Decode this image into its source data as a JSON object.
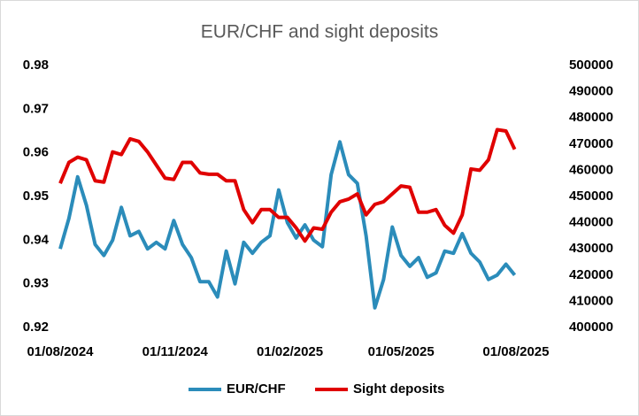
{
  "chart_data": {
    "type": "line",
    "title": "EUR/CHF and sight deposits",
    "x": [
      "01/08/2024",
      "08/08/2024",
      "15/08/2024",
      "22/08/2024",
      "29/08/2024",
      "05/09/2024",
      "12/09/2024",
      "19/09/2024",
      "26/09/2024",
      "03/10/2024",
      "10/10/2024",
      "17/10/2024",
      "24/10/2024",
      "31/10/2024",
      "07/11/2024",
      "14/11/2024",
      "21/11/2024",
      "28/11/2024",
      "05/12/2024",
      "12/12/2024",
      "19/12/2024",
      "26/12/2024",
      "02/01/2025",
      "09/01/2025",
      "16/01/2025",
      "23/01/2025",
      "30/01/2025",
      "06/02/2025",
      "13/02/2025",
      "20/02/2025",
      "27/02/2025",
      "06/03/2025",
      "13/03/2025",
      "20/03/2025",
      "27/03/2025",
      "03/04/2025",
      "10/04/2025",
      "17/04/2025",
      "24/04/2025",
      "01/05/2025",
      "08/05/2025",
      "15/05/2025",
      "22/05/2025",
      "29/05/2025",
      "05/06/2025",
      "12/06/2025",
      "19/06/2025",
      "26/06/2025",
      "03/07/2025",
      "10/07/2025",
      "17/07/2025",
      "24/07/2025",
      "31/07/2025"
    ],
    "series": [
      {
        "name": "EUR/CHF",
        "color": "#2b8cba",
        "axis": "y",
        "values": [
          0.938,
          0.945,
          0.9545,
          0.948,
          0.939,
          0.9365,
          0.94,
          0.9475,
          0.941,
          0.942,
          0.938,
          0.9395,
          0.938,
          0.9445,
          0.939,
          0.936,
          0.9305,
          0.9305,
          0.927,
          0.9375,
          0.93,
          0.9395,
          0.937,
          0.9395,
          0.941,
          0.9515,
          0.944,
          0.9405,
          0.9435,
          0.94,
          0.9385,
          0.955,
          0.9625,
          0.955,
          0.953,
          0.941,
          0.9245,
          0.931,
          0.943,
          0.9365,
          0.934,
          0.936,
          0.9315,
          0.9325,
          0.9375,
          0.937,
          0.9415,
          0.937,
          0.935,
          0.931,
          0.932,
          0.9345,
          0.932
        ]
      },
      {
        "name": "Sight deposits",
        "color": "#e00000",
        "axis": "y2",
        "values": [
          455000,
          463000,
          465000,
          464000,
          456000,
          455500,
          467000,
          466000,
          472000,
          471000,
          467000,
          462000,
          457000,
          456500,
          463000,
          463000,
          459000,
          458500,
          458500,
          456000,
          456000,
          445000,
          440000,
          445000,
          445000,
          442000,
          442000,
          438000,
          433000,
          438000,
          437500,
          444000,
          448000,
          449000,
          451000,
          443000,
          447000,
          448000,
          451000,
          454000,
          453500,
          444000,
          444000,
          445000,
          439000,
          436000,
          443000,
          460500,
          460000,
          464000,
          475500,
          475000,
          468000
        ]
      }
    ],
    "xlim": [
      "01/08/2024",
      "06/08/2025"
    ],
    "xticks": [
      "01/08/2024",
      "01/11/2024",
      "01/02/2025",
      "01/05/2025",
      "01/08/2025"
    ],
    "ylim": [
      0.92,
      0.98
    ],
    "yticks": [
      0.92,
      0.93,
      0.94,
      0.95,
      0.96,
      0.97,
      0.98
    ],
    "y2lim": [
      400000,
      500000
    ],
    "y2ticks": [
      400000,
      410000,
      420000,
      430000,
      440000,
      450000,
      460000,
      470000,
      480000,
      490000,
      500000
    ],
    "grid": false,
    "legend": "bottom"
  }
}
